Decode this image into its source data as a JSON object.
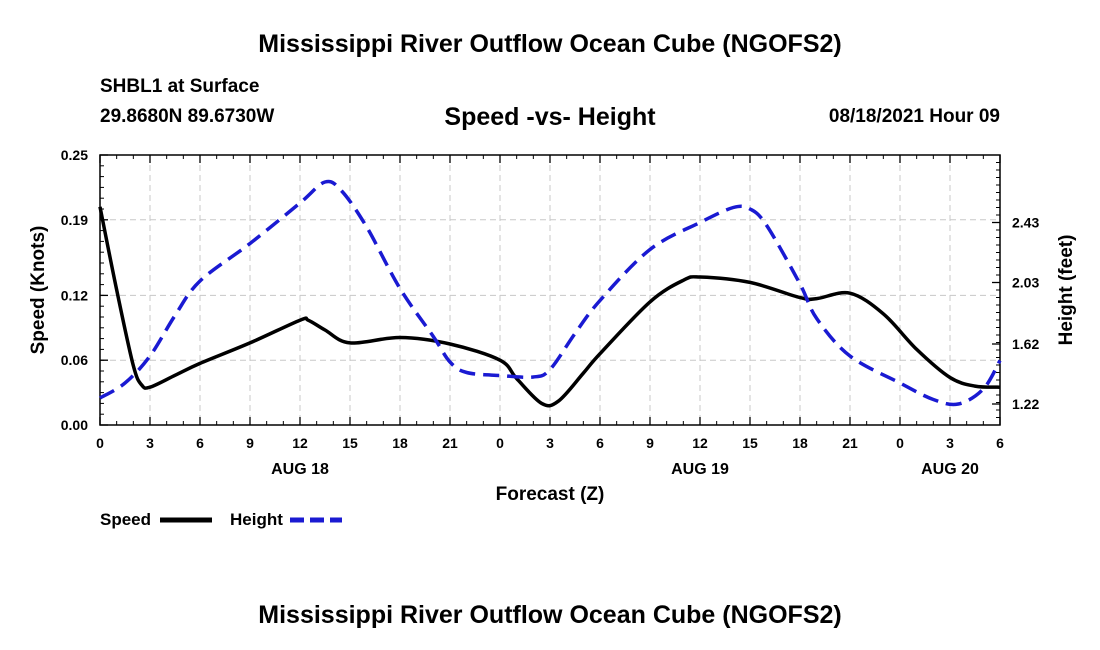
{
  "page": {
    "title_top": "Mississippi River Outflow Ocean Cube (NGOFS2)",
    "title_bottom": "Mississippi River Outflow Ocean Cube (NGOFS2)",
    "station": "SHBL1 at Surface",
    "coords": "29.8680N  89.6730W",
    "datetime": "08/18/2021 Hour 09"
  },
  "chart_data": {
    "type": "line",
    "title": "Speed -vs- Height",
    "xlabel": "Forecast (Z)",
    "ylabel_left": "Speed (Knots)",
    "ylabel_right": "Height (feet)",
    "x_range": [
      0,
      54
    ],
    "x_ticks": [
      0,
      3,
      6,
      9,
      12,
      15,
      18,
      21,
      24,
      27,
      30,
      33,
      36,
      39,
      42,
      45,
      48,
      51,
      54
    ],
    "x_tick_labels": [
      "0",
      "3",
      "6",
      "9",
      "12",
      "15",
      "18",
      "21",
      "0",
      "3",
      "6",
      "9",
      "12",
      "15",
      "18",
      "21",
      "0",
      "3",
      "6"
    ],
    "date_labels": [
      {
        "x": 12,
        "label": "AUG 18"
      },
      {
        "x": 36,
        "label": "AUG 19"
      },
      {
        "x": 51,
        "label": "AUG 20"
      }
    ],
    "ylim_left": [
      0,
      0.25
    ],
    "y_ticks_left": [
      0,
      0.06,
      0.12,
      0.19,
      0.25
    ],
    "y_tick_labels_left": [
      "0.00",
      "0.06",
      "0.12",
      "0.19",
      "0.25"
    ],
    "ylim_right": [
      1.08,
      2.88
    ],
    "y_ticks_right": [
      1.22,
      1.62,
      2.03,
      2.43
    ],
    "y_tick_labels_right": [
      "1.22",
      "1.62",
      "2.03",
      "2.43"
    ],
    "grid": true,
    "legend": [
      {
        "name": "Speed",
        "color": "#000000",
        "dash": "solid"
      },
      {
        "name": "Height",
        "color": "#1a1ad2",
        "dash": "dashed"
      }
    ],
    "series": [
      {
        "name": "Speed",
        "axis": "left",
        "color": "#000000",
        "x": [
          0,
          1,
          2,
          2.5,
          3,
          4.5,
          6,
          9,
          12,
          12.5,
          13.5,
          15,
          18,
          21,
          24,
          25,
          26.5,
          27.5,
          29,
          30,
          33,
          35,
          36,
          39,
          42,
          43,
          45,
          47,
          49,
          51,
          52.5,
          54
        ],
        "values": [
          0.202,
          0.125,
          0.055,
          0.037,
          0.035,
          0.046,
          0.057,
          0.076,
          0.097,
          0.097,
          0.088,
          0.076,
          0.081,
          0.075,
          0.06,
          0.043,
          0.02,
          0.022,
          0.048,
          0.066,
          0.114,
          0.134,
          0.137,
          0.132,
          0.118,
          0.117,
          0.122,
          0.103,
          0.07,
          0.044,
          0.036,
          0.035
        ]
      },
      {
        "name": "Height",
        "axis": "right",
        "color": "#1a1ad2",
        "x": [
          0,
          1.5,
          3,
          4.5,
          6,
          9,
          12,
          13.5,
          14.5,
          16,
          18,
          20,
          21,
          22,
          24,
          26,
          27,
          28.5,
          30,
          33,
          36,
          38,
          39,
          40,
          42,
          43,
          45,
          48,
          50,
          51.5,
          53,
          54
        ],
        "values": [
          1.26,
          1.36,
          1.54,
          1.81,
          2.04,
          2.29,
          2.56,
          2.7,
          2.64,
          2.4,
          1.99,
          1.67,
          1.5,
          1.43,
          1.41,
          1.4,
          1.45,
          1.69,
          1.91,
          2.25,
          2.43,
          2.53,
          2.52,
          2.41,
          2.02,
          1.79,
          1.54,
          1.36,
          1.25,
          1.22,
          1.32,
          1.51
        ]
      }
    ]
  }
}
